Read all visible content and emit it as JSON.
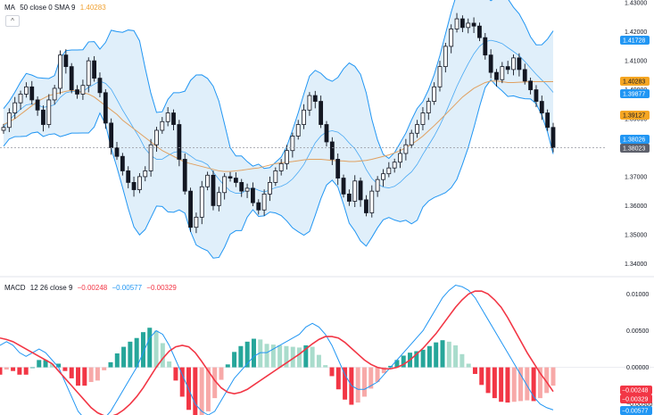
{
  "legend_ma": {
    "name": "MA",
    "params": "50 close 0 SMA 9",
    "value": "1.40283",
    "value_color": "#f0a030"
  },
  "legend_macd": {
    "name": "MACD",
    "params": "12 26 close 9",
    "values": [
      {
        "text": "−0.00248",
        "color": "#f23645"
      },
      {
        "text": "−0.00577",
        "color": "#2196f3"
      },
      {
        "text": "−0.00329",
        "color": "#f23645"
      }
    ]
  },
  "collapse_icon": "chevron-up-icon",
  "price_axis": {
    "ticks": [
      "1.43000",
      "1.42000",
      "1.41000",
      "1.40000",
      "1.39000",
      "1.38000",
      "1.37000",
      "1.36000",
      "1.35000",
      "1.34000"
    ],
    "tags": [
      {
        "text": "1.41728",
        "bg": "#2196f3",
        "fg": "#ffffff"
      },
      {
        "text": "1.40283",
        "bg": "#f5a623",
        "fg": "#131722"
      },
      {
        "text": "1.39877",
        "bg": "#2196f3",
        "fg": "#ffffff"
      },
      {
        "text": "1.39127",
        "bg": "#f5a623",
        "fg": "#131722"
      },
      {
        "text": "1.38026",
        "bg": "#2196f3",
        "fg": "#ffffff"
      },
      {
        "text": "1.38023",
        "bg": "#5d606b",
        "fg": "#ffffff"
      }
    ]
  },
  "macd_axis": {
    "ticks": [
      "0.01000",
      "0.00500",
      "0.00000",
      "−0.00500"
    ],
    "tags": [
      {
        "text": "−0.00248",
        "bg": "#f23645",
        "fg": "#ffffff"
      },
      {
        "text": "−0.00329",
        "bg": "#f23645",
        "fg": "#ffffff"
      },
      {
        "text": "−0.00577",
        "bg": "#2196f3",
        "fg": "#ffffff"
      }
    ]
  },
  "colors": {
    "up": "#131722",
    "down": "#131722",
    "band_fill": "#d6eaf8",
    "band_line": "#2196f3",
    "ma": "#e0a060",
    "macd_line": "#2196f3",
    "signal_line": "#f23645",
    "hist_pos_strong": "#26a69a",
    "hist_pos_weak": "#a9dccc",
    "hist_neg_strong": "#f23645",
    "hist_neg_weak": "#f7a9a8"
  },
  "chart_data": {
    "type": "line",
    "symbol_price_range": [
      1.337,
      1.431
    ],
    "price_series": {
      "close": [
        1.387,
        1.392,
        1.3955,
        1.3985,
        1.401,
        1.3965,
        1.393,
        1.388,
        1.3965,
        1.4005,
        1.412,
        1.408,
        1.4,
        1.3985,
        1.4015,
        1.41,
        1.404,
        1.399,
        1.3885,
        1.38,
        1.377,
        1.372,
        1.368,
        1.3655,
        1.37,
        1.372,
        1.381,
        1.386,
        1.389,
        1.392,
        1.388,
        1.376,
        1.365,
        1.3525,
        1.356,
        1.3665,
        1.3705,
        1.36,
        1.3645,
        1.37,
        1.3695,
        1.368,
        1.365,
        1.366,
        1.361,
        1.3585,
        1.364,
        1.368,
        1.372,
        1.3745,
        1.379,
        1.384,
        1.388,
        1.393,
        1.398,
        1.396,
        1.388,
        1.382,
        1.376,
        1.3695,
        1.364,
        1.3615,
        1.3685,
        1.362,
        1.3575,
        1.365,
        1.369,
        1.371,
        1.373,
        1.375,
        1.378,
        1.381,
        1.385,
        1.388,
        1.392,
        1.396,
        1.401,
        1.408,
        1.415,
        1.421,
        1.4245,
        1.4215,
        1.423,
        1.422,
        1.418,
        1.412,
        1.406,
        1.4035,
        1.408,
        1.407,
        1.411,
        1.407,
        1.403,
        1.4,
        1.396,
        1.392,
        1.387,
        1.38
      ],
      "ma50": [
        1.388,
        1.389,
        1.39,
        1.3915,
        1.393,
        1.3945,
        1.396,
        1.397,
        1.398,
        1.3985,
        1.399,
        1.3995,
        1.3998,
        1.3995,
        1.399,
        1.3985,
        1.3975,
        1.396,
        1.3945,
        1.393,
        1.3915,
        1.3895,
        1.388,
        1.3865,
        1.385,
        1.3835,
        1.382,
        1.3805,
        1.379,
        1.378,
        1.377,
        1.376,
        1.375,
        1.3745,
        1.374,
        1.3735,
        1.373,
        1.3725,
        1.372,
        1.3718,
        1.3718,
        1.372,
        1.3722,
        1.3725,
        1.3728,
        1.373,
        1.3735,
        1.374,
        1.3745,
        1.3748,
        1.375,
        1.3752,
        1.3755,
        1.3758,
        1.376,
        1.376,
        1.376,
        1.3758,
        1.3756,
        1.3755,
        1.3754,
        1.3752,
        1.3752,
        1.3754,
        1.3756,
        1.376,
        1.3765,
        1.377,
        1.3775,
        1.3782,
        1.379,
        1.38,
        1.3812,
        1.3825,
        1.384,
        1.3858,
        1.3876,
        1.3895,
        1.3915,
        1.3935,
        1.3955,
        1.3975,
        1.399,
        1.4005,
        1.4015,
        1.4025,
        1.403,
        1.403,
        1.4028,
        1.4025,
        1.4025,
        1.4026,
        1.4027,
        1.4028,
        1.4028,
        1.4028,
        1.4028,
        1.4028
      ]
    },
    "macd_series": {
      "macd": [
        0.003,
        0.0035,
        0.003,
        0.002,
        0.0015,
        0.002,
        0.0025,
        0.002,
        0.001,
        0.0,
        -0.002,
        -0.004,
        -0.006,
        -0.007,
        -0.0075,
        -0.008,
        -0.007,
        -0.006,
        -0.0045,
        -0.003,
        -0.0015,
        0.0,
        0.002,
        0.004,
        0.005,
        0.0045,
        0.003,
        0.001,
        -0.001,
        -0.003,
        -0.005,
        -0.006,
        -0.0065,
        -0.006,
        -0.0045,
        -0.003,
        -0.0015,
        -0.0005,
        0.0005,
        0.0015,
        0.002,
        0.002,
        0.0025,
        0.003,
        0.0035,
        0.004,
        0.0045,
        0.0055,
        0.006,
        0.0055,
        0.0045,
        0.003,
        0.001,
        -0.001,
        -0.0025,
        -0.003,
        -0.003,
        -0.0025,
        -0.002,
        -0.001,
        0.0,
        0.001,
        0.002,
        0.003,
        0.004,
        0.005,
        0.0065,
        0.008,
        0.0095,
        0.0105,
        0.0112,
        0.011,
        0.0105,
        0.0095,
        0.008,
        0.0065,
        0.005,
        0.0035,
        0.002,
        0.0005,
        -0.001,
        -0.0025,
        -0.004,
        -0.005,
        -0.0055,
        -0.0058
      ],
      "signal": [
        0.004,
        0.0038,
        0.0035,
        0.003,
        0.0025,
        0.002,
        0.0015,
        0.001,
        0.0005,
        -0.0005,
        -0.0015,
        -0.0025,
        -0.0035,
        -0.0045,
        -0.0055,
        -0.0062,
        -0.0066,
        -0.0067,
        -0.0064,
        -0.0058,
        -0.005,
        -0.004,
        -0.0028,
        -0.0014,
        0.0,
        0.0012,
        0.0022,
        0.0028,
        0.003,
        0.0028,
        0.002,
        0.0008,
        -0.0005,
        -0.0018,
        -0.0028,
        -0.0034,
        -0.0036,
        -0.0034,
        -0.003,
        -0.0024,
        -0.0018,
        -0.0012,
        -0.0006,
        0.0,
        0.0006,
        0.0012,
        0.0018,
        0.0025,
        0.0032,
        0.0038,
        0.0042,
        0.0042,
        0.004,
        0.0034,
        0.0026,
        0.0018,
        0.001,
        0.0004,
        0.0,
        -0.0002,
        -0.0002,
        0.0,
        0.0004,
        0.001,
        0.0018,
        0.0026,
        0.0036,
        0.0046,
        0.0058,
        0.007,
        0.0082,
        0.0092,
        0.01,
        0.0104,
        0.0104,
        0.01,
        0.0092,
        0.0082,
        0.0068,
        0.0052,
        0.0036,
        0.002,
        0.0006,
        -0.0008,
        -0.002,
        -0.0033
      ]
    },
    "ylim_price": [
      1.337,
      1.431
    ],
    "ylim_macd": [
      -0.0065,
      0.012
    ]
  }
}
